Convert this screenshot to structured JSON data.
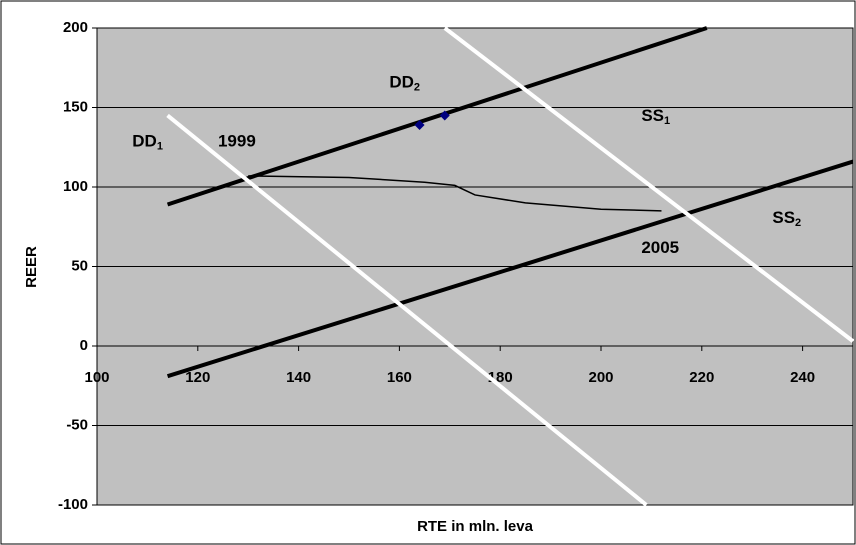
{
  "chart_data": {
    "type": "line",
    "xlabel": "RTE in mln. leva",
    "ylabel": "REER",
    "xlim": [
      100,
      250
    ],
    "ylim": [
      -100,
      200
    ],
    "xticks": [
      100,
      120,
      140,
      160,
      180,
      200,
      220,
      240
    ],
    "yticks": [
      -100,
      -50,
      0,
      50,
      100,
      150,
      200
    ],
    "grid": true,
    "background": "#c0c0c0",
    "series": [
      {
        "color": "#000000",
        "width": 4,
        "x": [
          114,
          221
        ],
        "values": [
          89,
          200
        ]
      },
      {
        "color": "#000000",
        "width": 4,
        "x": [
          114,
          250
        ],
        "values": [
          -19,
          116
        ]
      },
      {
        "color": "#ffffff",
        "width": 4,
        "x": [
          114,
          209
        ],
        "values": [
          145,
          -100
        ]
      },
      {
        "color": "#ffffff",
        "width": 4,
        "x": [
          169,
          250
        ],
        "values": [
          200,
          3
        ]
      },
      {
        "color": "#000000",
        "width": 1.5,
        "x": [
          130,
          150,
          165,
          171,
          173,
          175,
          185,
          200,
          212
        ],
        "values": [
          107,
          106,
          103,
          101,
          98,
          95,
          90,
          86,
          85
        ]
      },
      {
        "color": "#000080",
        "width": 0,
        "marker": "diamond",
        "x": [
          164,
          169
        ],
        "values": [
          139,
          145
        ]
      }
    ],
    "annotations": [
      {
        "text": "DD",
        "sub": "2",
        "x": 158,
        "y": 165
      },
      {
        "text": "SS",
        "sub": "1",
        "x": 208,
        "y": 144
      },
      {
        "text": "DD",
        "sub": "1",
        "x": 107,
        "y": 128
      },
      {
        "text": "1999",
        "x": 124,
        "y": 128
      },
      {
        "text": "SS",
        "sub": "2",
        "x": 234,
        "y": 80
      },
      {
        "text": "2005",
        "x": 208,
        "y": 61
      }
    ]
  }
}
